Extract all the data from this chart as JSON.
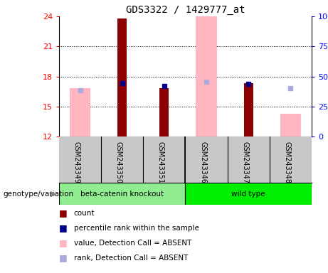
{
  "title": "GDS3322 / 1429777_at",
  "samples": [
    "GSM243349",
    "GSM243350",
    "GSM243351",
    "GSM243346",
    "GSM243347",
    "GSM243348"
  ],
  "ylim_left": [
    12,
    24
  ],
  "yticks_left": [
    12,
    15,
    18,
    21,
    24
  ],
  "ylim_right": [
    0,
    100
  ],
  "yticks_right": [
    0,
    25,
    50,
    75,
    100
  ],
  "red_bars": [
    null,
    23.8,
    16.8,
    null,
    17.3,
    null
  ],
  "pink_bars": [
    16.8,
    null,
    null,
    24.0,
    null,
    14.3
  ],
  "blue_squares": [
    null,
    17.35,
    17.05,
    null,
    17.25,
    null
  ],
  "light_blue_squares": [
    16.6,
    null,
    null,
    17.5,
    null,
    16.8
  ],
  "red_color": "#8B0000",
  "pink_color": "#FFB6C1",
  "blue_color": "#00008B",
  "light_blue_color": "#AAAADD",
  "ybase": 12,
  "group_label": "genotype/variation",
  "group1_label": "beta-catenin knockout",
  "group2_label": "wild type",
  "group1_color": "#90EE90",
  "group2_color": "#00EE00",
  "sample_box_color": "#C8C8C8"
}
